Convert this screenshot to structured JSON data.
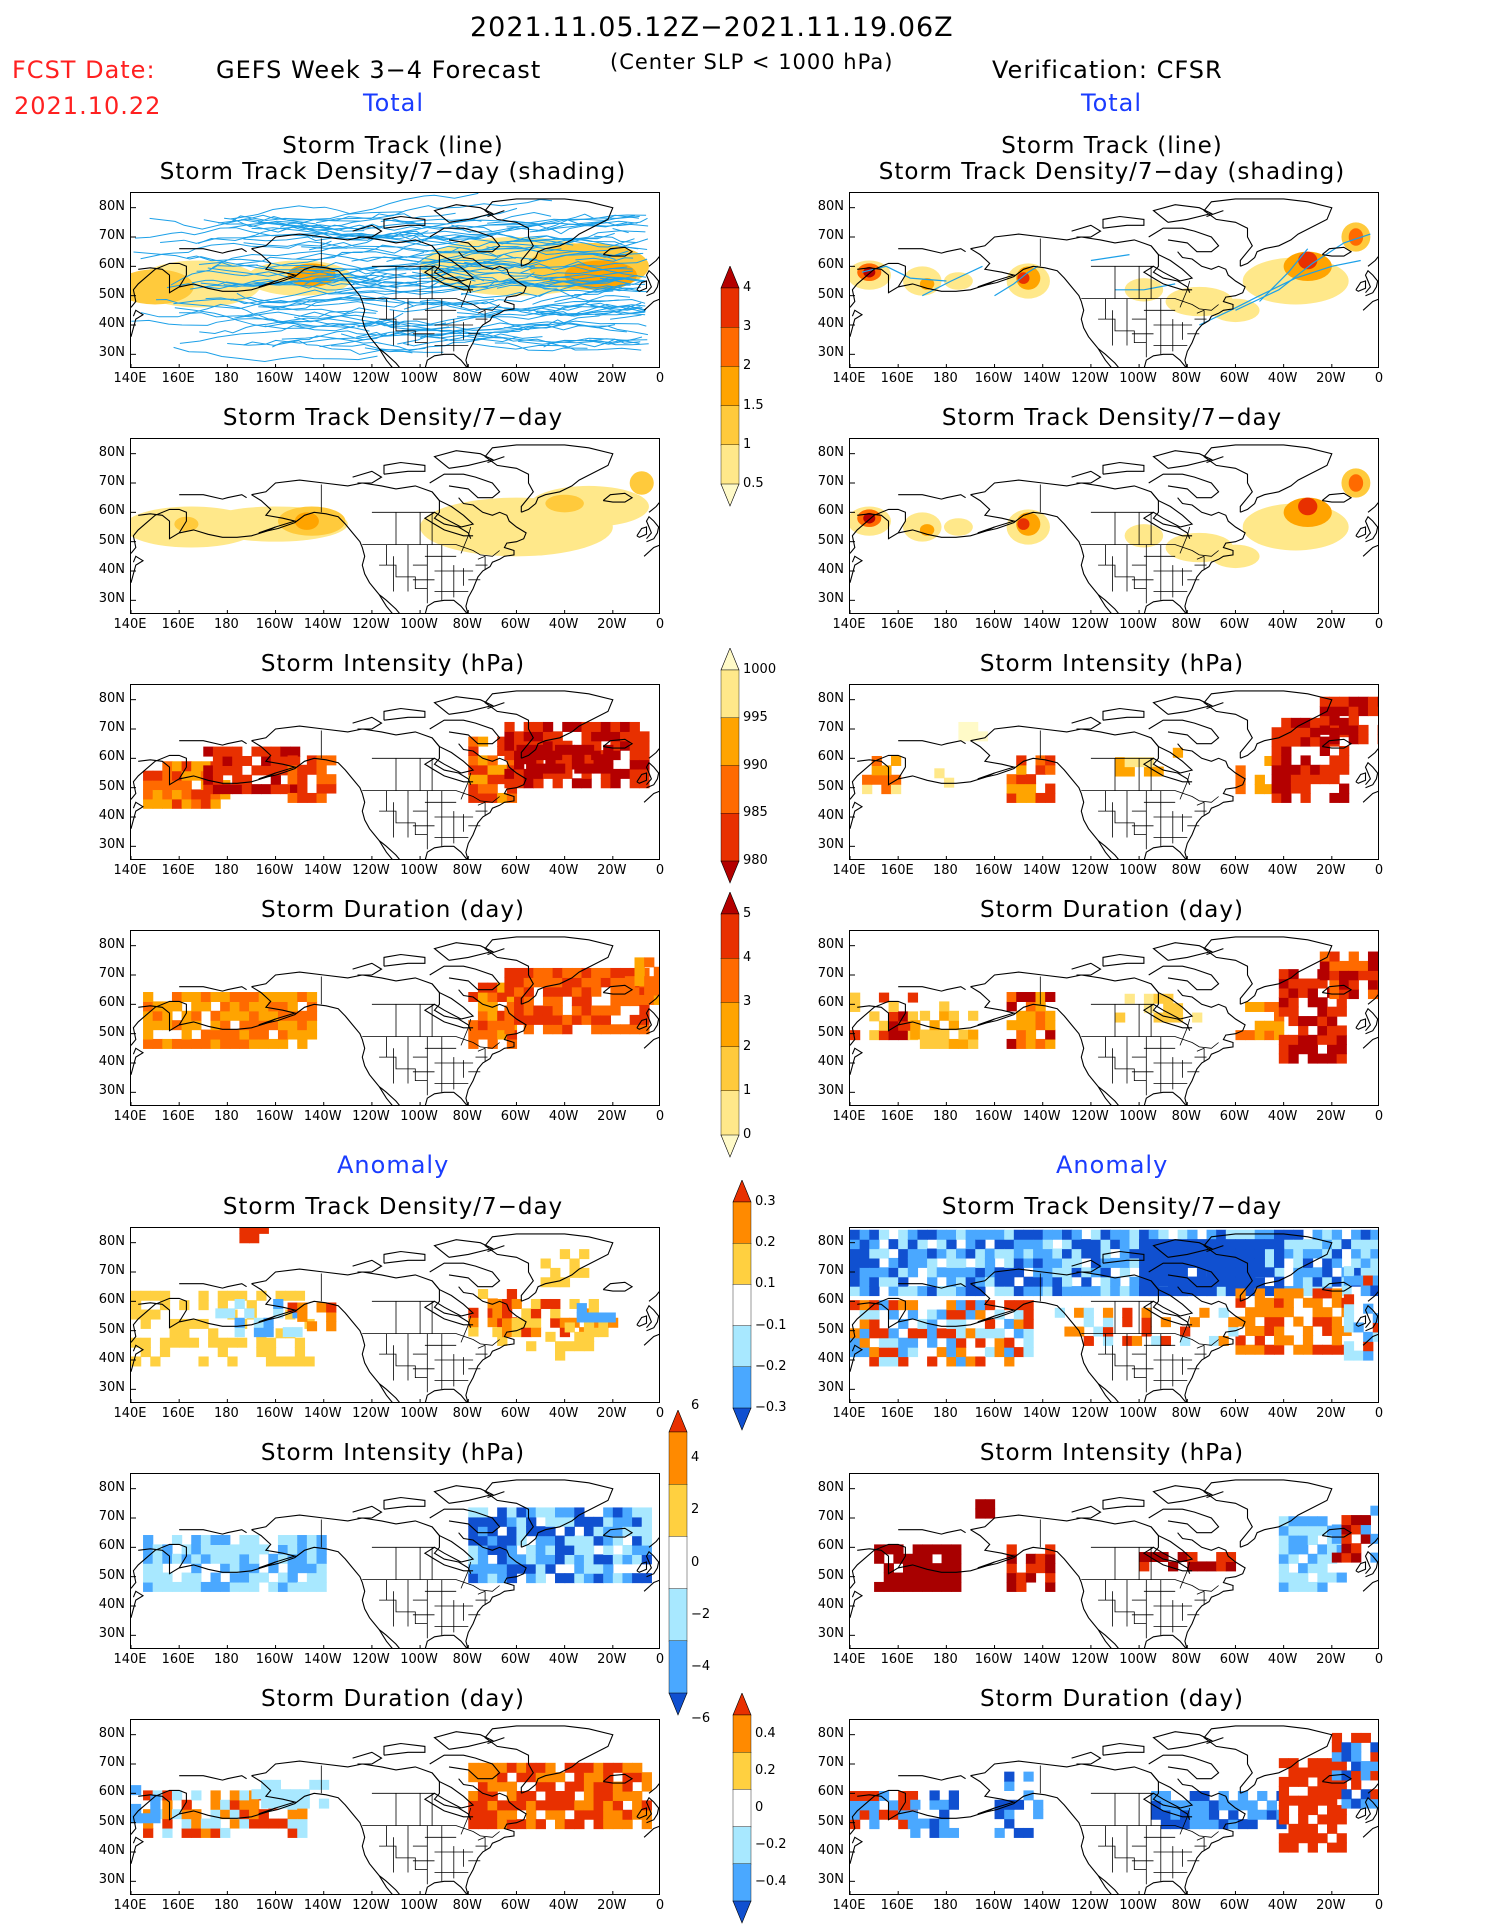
{
  "header": {
    "period": "2021.11.05.12Z−2021.11.19.06Z",
    "fcst_label": "FCST Date:",
    "fcst_date": "2021.10.22",
    "left_title": "GEFS Week 3−4 Forecast",
    "center_note": "(Center SLP < 1000 hPa)",
    "right_title": "Verification: CFSR"
  },
  "sections": {
    "total": "Total",
    "anomaly": "Anomaly"
  },
  "panel_titles": {
    "track_line_1": "Storm Track (line)",
    "track_line_2": "Storm Track Density/7−day (shading)",
    "density": "Storm Track Density/7−day",
    "intensity": "Storm Intensity (hPa)",
    "duration": "Storm Duration (day)"
  },
  "axes": {
    "lat_labels": [
      "80N",
      "70N",
      "60N",
      "50N",
      "40N",
      "30N"
    ],
    "lon_labels": [
      "140E",
      "160E",
      "180",
      "160W",
      "140W",
      "120W",
      "100W",
      "80W",
      "60W",
      "40W",
      "20W",
      "0"
    ]
  },
  "colorbars": {
    "density": {
      "labels": [
        "4",
        "3",
        "2",
        "1.5",
        "1",
        "0.5"
      ],
      "colors": [
        "#b40000",
        "#e83000",
        "#ff6a00",
        "#ffa400",
        "#ffca3c",
        "#ffe88a",
        "#fffac8"
      ]
    },
    "intensity": {
      "labels": [
        "1000",
        "995",
        "990",
        "985",
        "980"
      ],
      "colors": [
        "#fffac8",
        "#ffe88a",
        "#ffa400",
        "#ff6a00",
        "#e83000",
        "#b40000"
      ]
    },
    "duration": {
      "labels": [
        "5",
        "4",
        "3",
        "2",
        "1",
        "0"
      ],
      "colors": [
        "#b40000",
        "#e83000",
        "#ff6a00",
        "#ffa400",
        "#ffca3c",
        "#ffe88a",
        "#fffac8"
      ]
    },
    "anom_density": {
      "labels": [
        "0.3",
        "0.2",
        "0.1",
        "−0.1",
        "−0.2",
        "−0.3"
      ],
      "colors": [
        "#e83000",
        "#ff8a00",
        "#ffd040",
        "#ffffff",
        "#a8e8ff",
        "#4aa8ff",
        "#1050d0"
      ]
    },
    "anom_intensity": {
      "labels": [
        "6",
        "4",
        "2",
        "0",
        "−2",
        "−4",
        "−6"
      ],
      "colors": [
        "#e83000",
        "#ff8a00",
        "#ffd040",
        "#ffffff",
        "#a8e8ff",
        "#4aa8ff",
        "#1050d0"
      ]
    },
    "anom_duration": {
      "labels": [
        "0.4",
        "0.2",
        "0",
        "−0.2",
        "−0.4"
      ],
      "colors": [
        "#e83000",
        "#ff8a00",
        "#ffd040",
        "#ffffff",
        "#a8e8ff",
        "#4aa8ff",
        "#1050d0"
      ]
    }
  }
}
